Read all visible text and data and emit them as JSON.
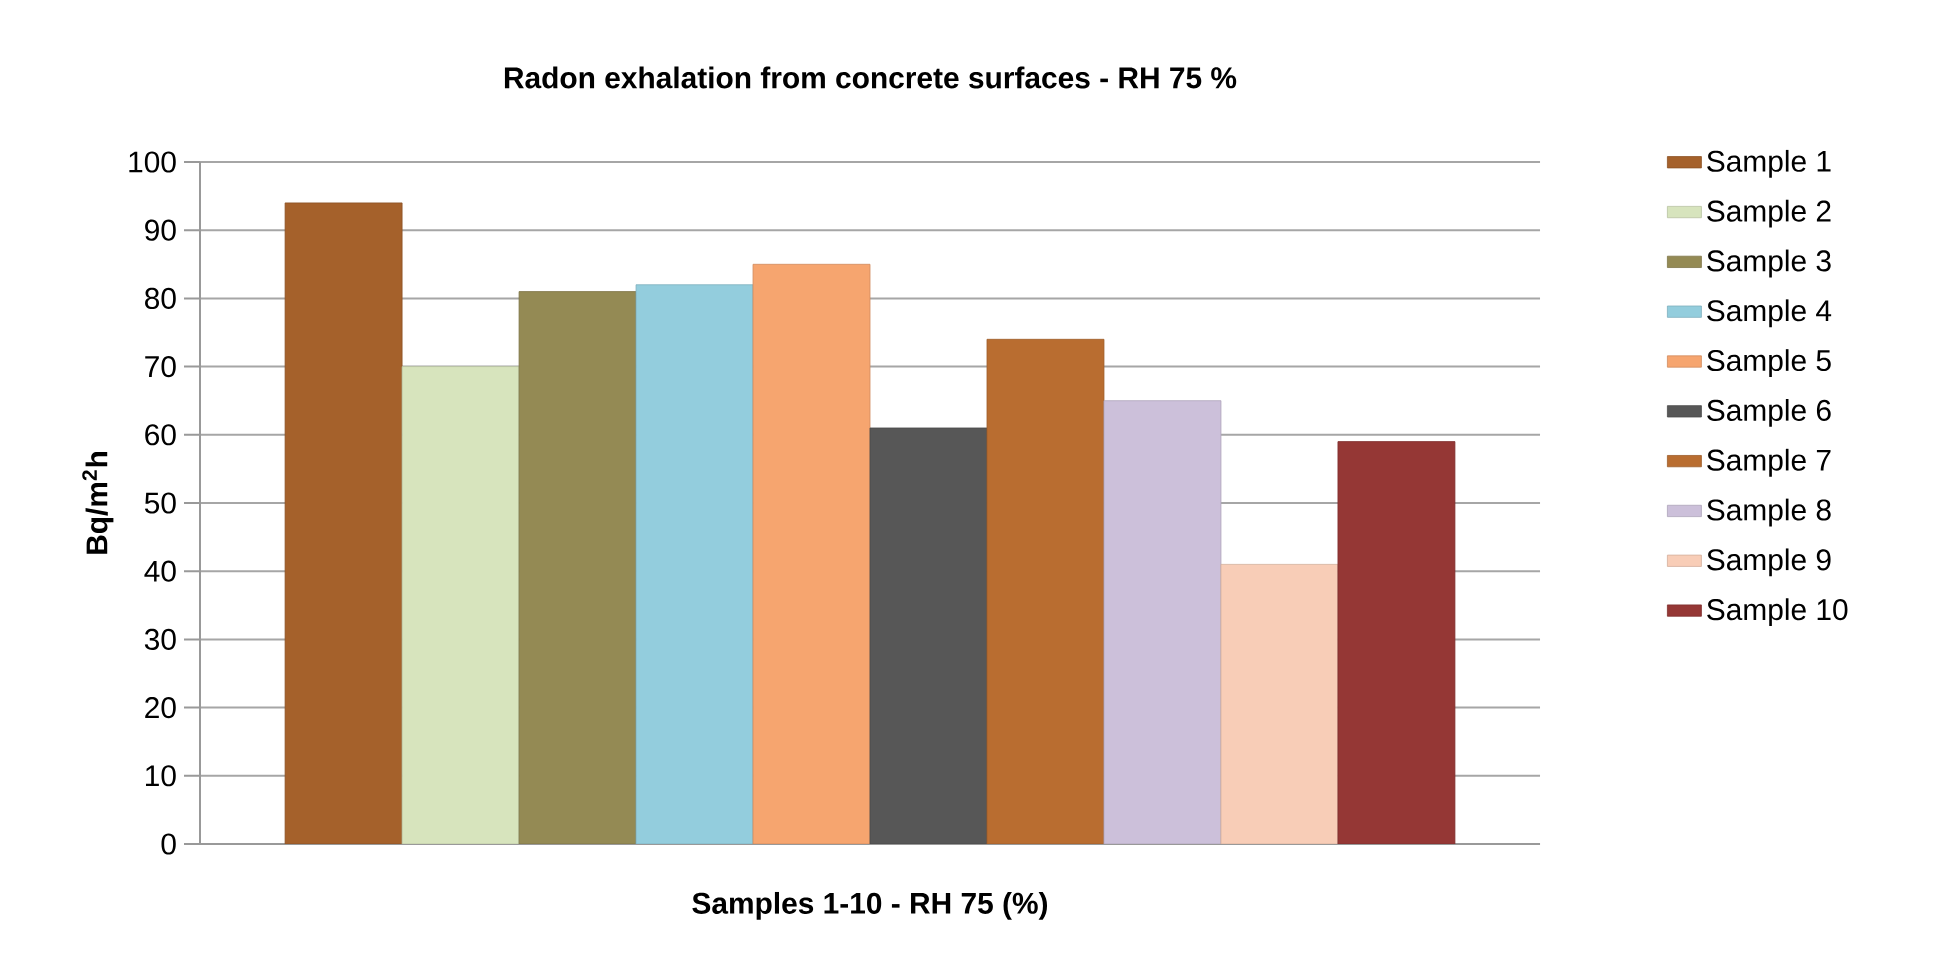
{
  "chart_data": {
    "type": "bar",
    "title": "Radon exhalation from concrete surfaces - RH 75 %",
    "xlabel": "Samples 1-10 - RH 75 (%)",
    "ylabel": "Bq/m$^{2}$h",
    "categories": [
      null
    ],
    "series": [
      {
        "name": "Sample 1",
        "color": "#a5612b",
        "values": [
          94
        ]
      },
      {
        "name": "Sample 2",
        "color": "#d7e4bd",
        "values": [
          70
        ]
      },
      {
        "name": "Sample 3",
        "color": "#948a54",
        "values": [
          81
        ]
      },
      {
        "name": "Sample 4",
        "color": "#93cddd",
        "values": [
          82
        ]
      },
      {
        "name": "Sample 5",
        "color": "#f6a56f",
        "values": [
          85
        ]
      },
      {
        "name": "Sample 6",
        "color": "#575757",
        "values": [
          61
        ]
      },
      {
        "name": "Sample 7",
        "color": "#b96d30",
        "values": [
          74
        ]
      },
      {
        "name": "Sample 8",
        "color": "#ccc0da",
        "values": [
          65
        ]
      },
      {
        "name": "Sample 9",
        "color": "#f8cdb7",
        "values": [
          41
        ]
      },
      {
        "name": "Sample 10",
        "color": "#953735",
        "values": [
          59
        ]
      }
    ],
    "ylim": [
      0,
      100
    ],
    "yticks": [
      0,
      10,
      20,
      30,
      40,
      50,
      60,
      70,
      80,
      90,
      100
    ],
    "grid": "y",
    "legend": "right"
  }
}
